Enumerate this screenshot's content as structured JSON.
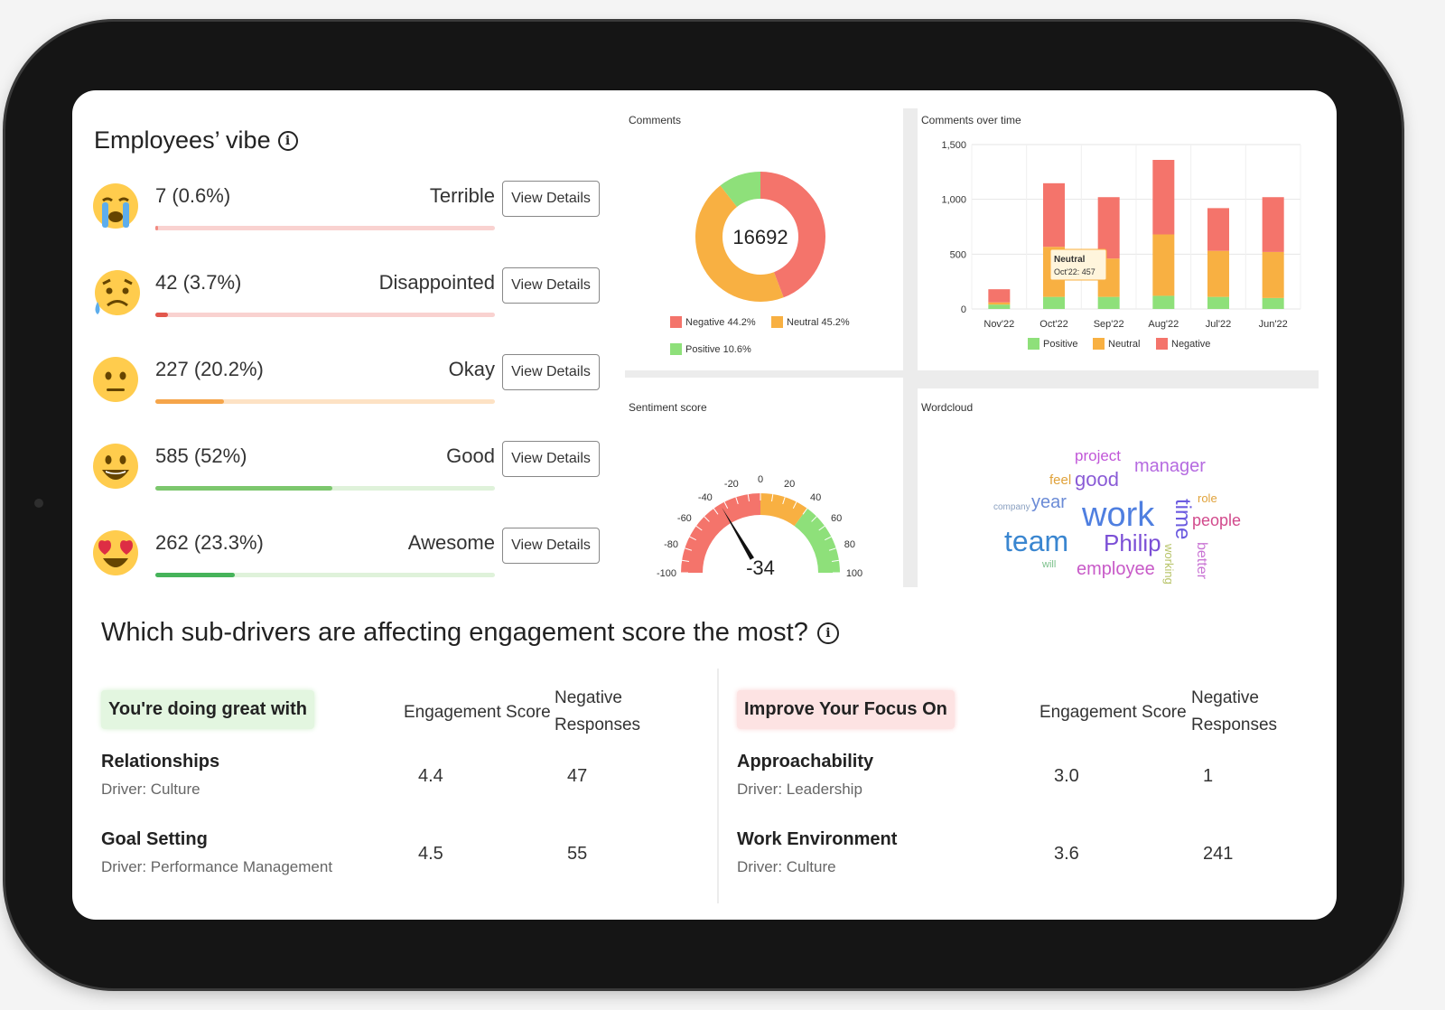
{
  "vibe": {
    "title": "Employees’ vibe",
    "button_label": "View Details",
    "rows": [
      {
        "emoji": "crying-face-icon",
        "count": "7 (0.6%)",
        "label": "Terrible",
        "fill": 0.006,
        "fill_color": "#f28b82",
        "track_color": "#f9d2d0"
      },
      {
        "emoji": "sad-face-icon",
        "count": "42 (3.7%)",
        "label": "Disappointed",
        "fill": 0.037,
        "fill_color": "#e2574c",
        "track_color": "#f9d2d0"
      },
      {
        "emoji": "neutral-face-icon",
        "count": "227 (20.2%)",
        "label": "Okay",
        "fill": 0.202,
        "fill_color": "#f5a54a",
        "track_color": "#fde2c4"
      },
      {
        "emoji": "smiling-face-icon",
        "count": "585 (52%)",
        "label": "Good",
        "fill": 0.52,
        "fill_color": "#7cc76d",
        "track_color": "#dff2da"
      },
      {
        "emoji": "heart-eyes-icon",
        "count": "262 (23.3%)",
        "label": "Awesome",
        "fill": 0.233,
        "fill_color": "#46b35a",
        "track_color": "#dff2da"
      }
    ]
  },
  "comments": {
    "title": "Comments",
    "total": "16692",
    "legend": [
      {
        "label": "Negative",
        "value": "44.2%",
        "color": "#f4746b"
      },
      {
        "label": "Neutral",
        "value": "45.2%",
        "color": "#f8b042"
      },
      {
        "label": "Positive",
        "value": "10.6%",
        "color": "#8ee07a"
      }
    ]
  },
  "comments_over_time": {
    "title": "Comments over time",
    "tooltip": {
      "title": "Neutral",
      "text": "Oct'22: 457"
    },
    "legend": [
      {
        "label": "Positive",
        "color": "#8ee07a"
      },
      {
        "label": "Neutral",
        "color": "#f8b042"
      },
      {
        "label": "Negative",
        "color": "#f4746b"
      }
    ]
  },
  "sentiment": {
    "title": "Sentiment score",
    "value": "-34",
    "ticks": [
      "-100",
      "-80",
      "-60",
      "-40",
      "-20",
      "0",
      "20",
      "40",
      "60",
      "80",
      "100"
    ]
  },
  "wordcloud": {
    "title": "Wordcloud",
    "words": [
      {
        "text": "project",
        "color": "#c156d8"
      },
      {
        "text": "manager",
        "color": "#b56ae0"
      },
      {
        "text": "feel",
        "color": "#e0a23a"
      },
      {
        "text": "good",
        "color": "#8a5bd6"
      },
      {
        "text": "year",
        "color": "#6b8bd6"
      },
      {
        "text": "work",
        "color": "#4f7fe0"
      },
      {
        "text": "time",
        "color": "#6c5be0"
      },
      {
        "text": "people",
        "color": "#d24a8c"
      },
      {
        "text": "team",
        "color": "#3a86d0"
      },
      {
        "text": "Philip",
        "color": "#7b4fd6"
      },
      {
        "text": "better",
        "color": "#c974d4"
      },
      {
        "text": "working",
        "color": "#b8c46a"
      },
      {
        "text": "employee",
        "color": "#c85ac8"
      },
      {
        "text": "role",
        "color": "#e0a23a"
      },
      {
        "text": "company",
        "color": "#8aa0c0"
      },
      {
        "text": "will",
        "color": "#7ac08a"
      }
    ]
  },
  "chart_data": [
    {
      "type": "pie",
      "title": "Comments",
      "categories": [
        "Negative",
        "Neutral",
        "Positive"
      ],
      "values": [
        44.2,
        45.2,
        10.6
      ],
      "total": 16692,
      "legend": "bottom"
    },
    {
      "type": "bar",
      "title": "Comments over time",
      "categories": [
        "Nov'22",
        "Oct'22",
        "Sep'22",
        "Aug'22",
        "Jul'22",
        "Jun'22"
      ],
      "series": [
        {
          "name": "Positive",
          "values": [
            40,
            110,
            110,
            120,
            110,
            100
          ]
        },
        {
          "name": "Neutral",
          "values": [
            20,
            457,
            350,
            560,
            420,
            420
          ]
        },
        {
          "name": "Negative",
          "values": [
            120,
            580,
            560,
            680,
            390,
            500
          ]
        }
      ],
      "yticks": [
        0,
        500,
        1000,
        1500
      ],
      "ylim": [
        0,
        1500
      ],
      "stacked": true,
      "grid": true,
      "legend": "bottom"
    },
    {
      "type": "gauge",
      "title": "Sentiment score",
      "value": -34,
      "range": [
        -100,
        100
      ]
    }
  ],
  "subdrivers": {
    "title": "Which sub-drivers are affecting engagement score the most?",
    "left": {
      "pill": "You're doing great with",
      "col_score": "Engagement Score",
      "col_neg_1": "Negative",
      "col_neg_2": "Responses",
      "rows": [
        {
          "name": "Relationships",
          "driver": "Driver: Culture",
          "score": "4.4",
          "neg": "47"
        },
        {
          "name": "Goal Setting",
          "driver": "Driver: Performance Management",
          "score": "4.5",
          "neg": "55"
        }
      ]
    },
    "right": {
      "pill": "Improve Your Focus On",
      "col_score": "Engagement Score",
      "col_neg_1": "Negative",
      "col_neg_2": "Responses",
      "rows": [
        {
          "name": "Approachability",
          "driver": "Driver: Leadership",
          "score": "3.0",
          "neg": "1"
        },
        {
          "name": "Work Environment",
          "driver": "Driver: Culture",
          "score": "3.6",
          "neg": "241"
        }
      ]
    }
  }
}
